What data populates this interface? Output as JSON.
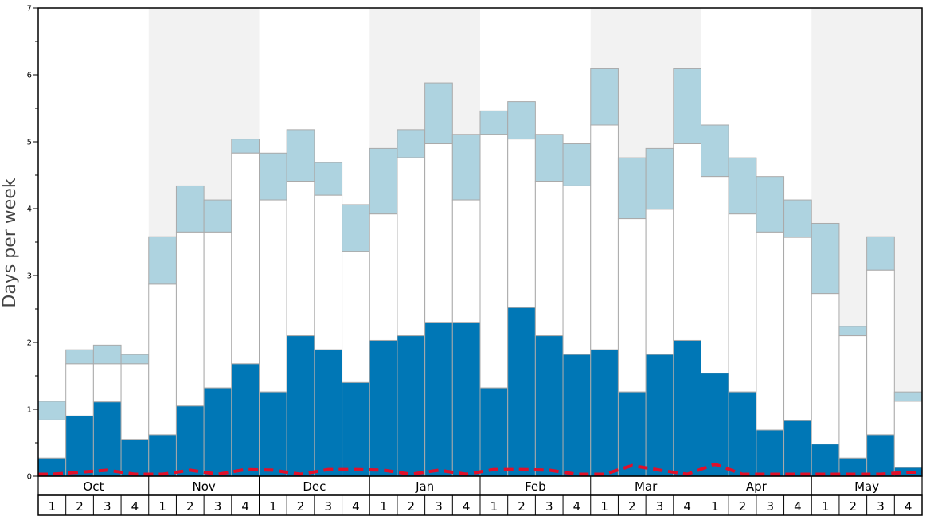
{
  "chart_data": {
    "type": "bar",
    "ylabel": "Days per week",
    "ylim": [
      0,
      7
    ],
    "y_ticks": [
      "0",
      "1",
      "2",
      "3",
      "4",
      "5",
      "6",
      "7"
    ],
    "months": [
      "Oct",
      "Nov",
      "Dec",
      "Jan",
      "Feb",
      "Mar",
      "Apr",
      "May"
    ],
    "weeks_per_month": [
      "1",
      "2",
      "3",
      "4"
    ],
    "shaded_months": [
      "Nov",
      "Jan",
      "Mar",
      "May"
    ],
    "colors": {
      "bottom_segment": "#0077b6",
      "middle_segment": "#ffffff",
      "top_segment": "#aed3e0",
      "dashed_line": "#e0102a",
      "shading": "#f2f2f2",
      "bar_outline": "#aaaaaa"
    },
    "series": [
      {
        "key": "bottom",
        "values": [
          0.27,
          0.9,
          1.11,
          0.55,
          0.62,
          1.05,
          1.32,
          1.68,
          1.26,
          2.1,
          1.89,
          1.4,
          2.03,
          2.1,
          2.3,
          2.3,
          1.32,
          2.52,
          2.1,
          1.82,
          1.89,
          1.26,
          1.82,
          2.03,
          1.54,
          1.26,
          0.69,
          0.83,
          0.48,
          0.27,
          0.62,
          0.13
        ]
      },
      {
        "key": "middle_top",
        "values": [
          0.84,
          1.68,
          1.68,
          1.68,
          2.87,
          3.65,
          3.65,
          4.83,
          4.13,
          4.41,
          4.2,
          3.36,
          3.92,
          4.76,
          4.97,
          4.13,
          5.11,
          5.04,
          4.41,
          4.34,
          5.25,
          3.85,
          3.99,
          4.97,
          4.48,
          3.92,
          3.65,
          3.57,
          2.73,
          2.1,
          3.08,
          1.12
        ]
      },
      {
        "key": "total",
        "values": [
          1.12,
          1.89,
          1.96,
          1.82,
          3.58,
          4.34,
          4.13,
          5.04,
          4.83,
          5.18,
          4.69,
          4.06,
          4.9,
          5.18,
          5.88,
          5.11,
          5.46,
          5.6,
          5.11,
          4.97,
          6.09,
          4.76,
          4.9,
          6.09,
          5.25,
          4.76,
          4.48,
          4.13,
          3.78,
          2.24,
          3.58,
          1.26
        ]
      },
      {
        "key": "dashed",
        "values": [
          0.03,
          0.06,
          0.09,
          0.03,
          0.03,
          0.09,
          0.03,
          0.1,
          0.09,
          0.03,
          0.1,
          0.1,
          0.09,
          0.03,
          0.09,
          0.03,
          0.1,
          0.1,
          0.09,
          0.03,
          0.03,
          0.16,
          0.09,
          0.03,
          0.18,
          0.03,
          0.03,
          0.03,
          0.03,
          0.03,
          0.03,
          0.06
        ]
      }
    ]
  }
}
